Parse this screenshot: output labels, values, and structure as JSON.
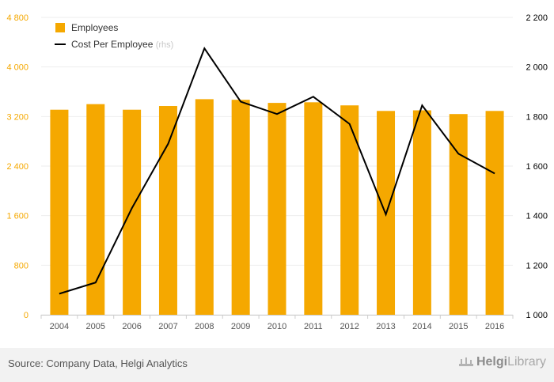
{
  "chart_data": {
    "type": "bar+line",
    "categories": [
      "2004",
      "2005",
      "2006",
      "2007",
      "2008",
      "2009",
      "2010",
      "2011",
      "2012",
      "2013",
      "2014",
      "2015",
      "2016"
    ],
    "series": [
      {
        "name": "Employees",
        "type": "bar",
        "axis": "left",
        "color": "#f5a800",
        "values": [
          3310,
          3400,
          3310,
          3370,
          3480,
          3470,
          3420,
          3430,
          3380,
          3290,
          3300,
          3240,
          3290
        ]
      },
      {
        "name": "Cost Per Employee",
        "legend_suffix": "(rhs)",
        "type": "line",
        "axis": "right",
        "color": "#000000",
        "values": [
          1085,
          1130,
          1430,
          1690,
          2075,
          1860,
          1810,
          1880,
          1770,
          1405,
          1845,
          1650,
          1570
        ]
      }
    ],
    "y_left": {
      "ylim": [
        0,
        4800
      ],
      "ticks": [
        "0",
        "800",
        "1 600",
        "2 400",
        "3 200",
        "4 000",
        "4 800"
      ],
      "tick_values": [
        0,
        800,
        1600,
        2400,
        3200,
        4000,
        4800
      ]
    },
    "y_right": {
      "ylim": [
        1000,
        2200
      ],
      "ticks": [
        "1 000",
        "1 200",
        "1 400",
        "1 600",
        "1 800",
        "2 000",
        "2 200"
      ],
      "tick_values": [
        1000,
        1200,
        1400,
        1600,
        1800,
        2000,
        2200
      ]
    },
    "grid": true,
    "legend_position": "top-left",
    "colors": {
      "grid": "#eeeeee",
      "left_tick": "#f5a800",
      "right_tick": "#000000",
      "x_tick": "#555555"
    }
  },
  "footer": {
    "source": "Source: Company Data, Helgi Analytics",
    "brand_name": "Helgi",
    "brand_sub": "Library"
  }
}
